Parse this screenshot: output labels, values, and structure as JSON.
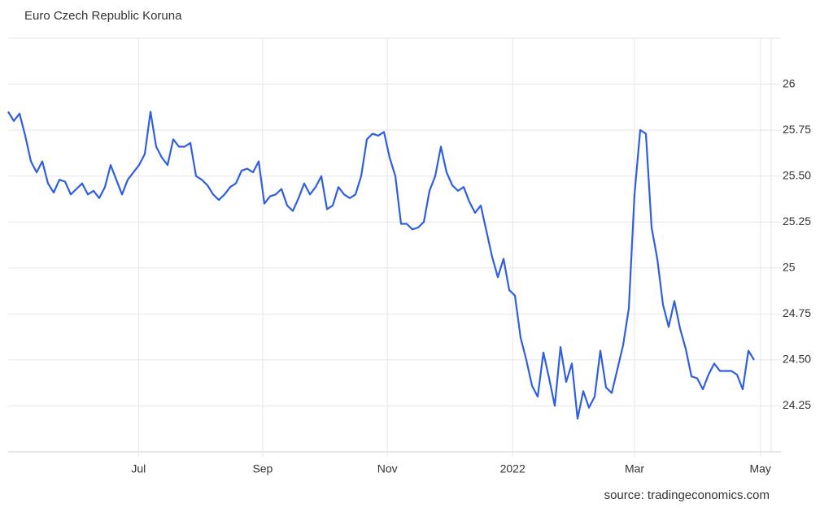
{
  "chart_data": {
    "type": "line",
    "title": "Euro Czech Republic Koruna",
    "source": "source: tradingeconomics.com",
    "color": "#2f5fe0",
    "values": [
      25.85,
      25.8,
      25.84,
      25.72,
      25.58,
      25.52,
      25.58,
      25.46,
      25.41,
      25.48,
      25.47,
      25.4,
      25.43,
      25.46,
      25.4,
      25.42,
      25.38,
      25.44,
      25.56,
      25.48,
      25.4,
      25.48,
      25.52,
      25.56,
      25.62,
      25.85,
      25.66,
      25.6,
      25.56,
      25.7,
      25.66,
      25.66,
      25.68,
      25.5,
      25.48,
      25.45,
      25.4,
      25.37,
      25.4,
      25.44,
      25.46,
      25.53,
      25.54,
      25.52,
      25.58,
      25.35,
      25.39,
      25.4,
      25.43,
      25.34,
      25.31,
      25.38,
      25.46,
      25.4,
      25.44,
      25.5,
      25.32,
      25.34,
      25.44,
      25.4,
      25.38,
      25.4,
      25.5,
      25.7,
      25.73,
      25.72,
      25.74,
      25.6,
      25.5,
      25.24,
      25.24,
      25.21,
      25.22,
      25.25,
      25.42,
      25.5,
      25.66,
      25.52,
      25.45,
      25.42,
      25.44,
      25.36,
      25.3,
      25.34,
      25.2,
      25.06,
      24.95,
      25.05,
      24.88,
      24.85,
      24.62,
      24.5,
      24.36,
      24.3,
      24.54,
      24.4,
      24.25,
      24.57,
      24.38,
      24.48,
      24.18,
      24.33,
      24.24,
      24.3,
      24.55,
      24.35,
      24.32,
      24.45,
      24.58,
      24.78,
      25.4,
      25.75,
      25.73,
      25.22,
      25.05,
      24.8,
      24.68,
      24.82,
      24.67,
      24.56,
      24.41,
      24.4,
      24.34,
      24.42,
      24.48,
      24.44,
      24.44,
      24.44,
      24.42,
      24.34,
      24.55,
      24.5
    ],
    "xlim": [
      0,
      134
    ],
    "xticks": [
      {
        "value": 22.9,
        "label": "Jul"
      },
      {
        "value": 44.7,
        "label": "Sep"
      },
      {
        "value": 66.6,
        "label": "Nov"
      },
      {
        "value": 88.6,
        "label": "2022"
      },
      {
        "value": 110,
        "label": "Mar"
      },
      {
        "value": 132.1,
        "label": "May"
      }
    ],
    "ylim": [
      24,
      26.25
    ],
    "yticks": [
      {
        "value": 24.25,
        "label": "24.25"
      },
      {
        "value": 24.5,
        "label": "24.50"
      },
      {
        "value": 24.75,
        "label": "24.75"
      },
      25,
      {
        "value": 25.25,
        "label": "25.25"
      },
      {
        "value": 25.5,
        "label": "25.50"
      },
      {
        "value": 25.75,
        "label": "25.75"
      },
      26
    ],
    "grid": true
  }
}
